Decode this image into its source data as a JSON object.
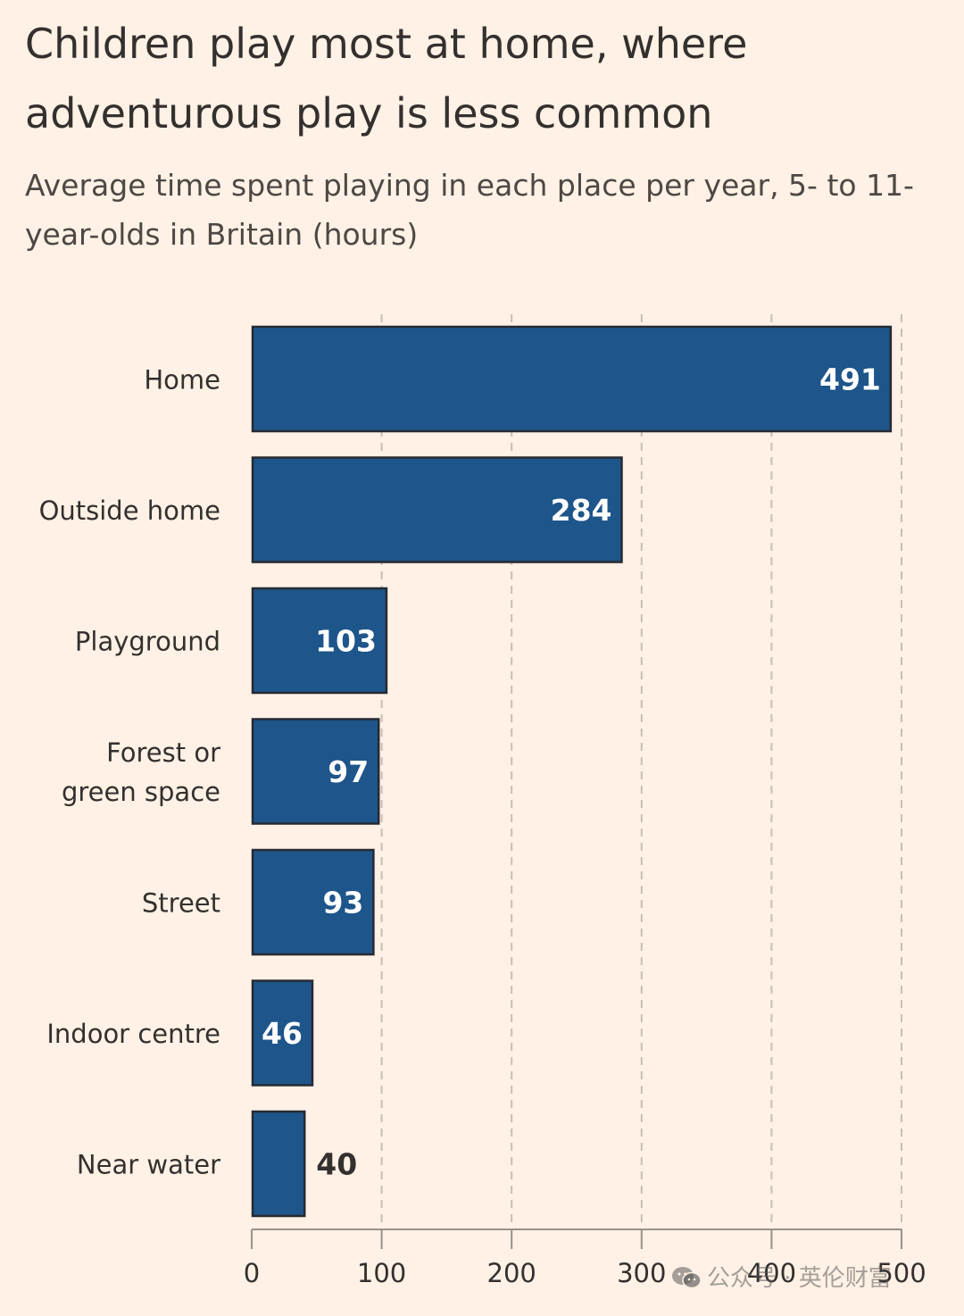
{
  "header": {
    "title": "Children play most at home, where adventurous play is less common",
    "subtitle": "Average time spent playing in each place per year, 5- to 11-year-olds in Britain (hours)"
  },
  "colors": {
    "background": "#fff1e5",
    "bar": "#1e558a",
    "bar_outline": "#262a33",
    "grid": "#c9beb4",
    "text": "#33302e",
    "inside_value_text": "#ffffff",
    "outside_value_text": "#33302e"
  },
  "watermark": {
    "icon": "wechat-icon",
    "text": "公众号 · 英伦财富"
  },
  "chart_data": {
    "type": "bar",
    "orientation": "horizontal",
    "categories": [
      "Home",
      "Outside home",
      "Playground",
      "Forest or green space",
      "Street",
      "Indoor centre",
      "Near water"
    ],
    "category_lines": [
      [
        "Home"
      ],
      [
        "Outside home"
      ],
      [
        "Playground"
      ],
      [
        "Forest or",
        "green space"
      ],
      [
        "Street"
      ],
      [
        "Indoor centre"
      ],
      [
        "Near water"
      ]
    ],
    "values": [
      491,
      284,
      103,
      97,
      93,
      46,
      40
    ],
    "value_labels": [
      "491",
      "284",
      "103",
      "97",
      "93",
      "46",
      "40"
    ],
    "xlim": [
      0,
      500
    ],
    "xticks": [
      0,
      100,
      200,
      300,
      400,
      500
    ],
    "xtick_labels": [
      "0",
      "100",
      "200",
      "300",
      "400",
      "500"
    ],
    "grid": true,
    "xlabel": "",
    "ylabel": ""
  }
}
